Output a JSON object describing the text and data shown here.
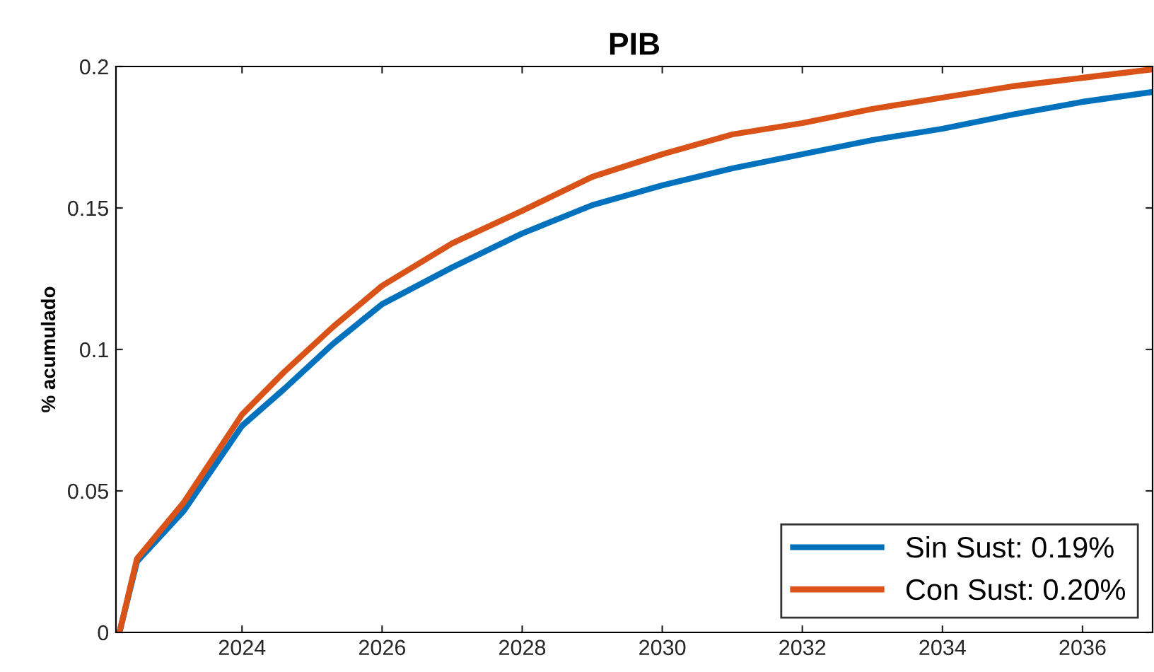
{
  "chart_data": {
    "type": "line",
    "title": "PIB",
    "ylabel": "% acumulado",
    "x": [
      2022.25,
      2022.5,
      2023.17,
      2024,
      2024.6,
      2025.3,
      2026,
      2027,
      2028,
      2029,
      2030,
      2031,
      2032,
      2033,
      2034,
      2035,
      2036,
      2037
    ],
    "series": [
      {
        "name": "Sin Sust: 0.19%",
        "color": "#0072bd",
        "values": [
          0,
          0.025,
          0.043,
          0.073,
          0.086,
          0.102,
          0.116,
          0.129,
          0.141,
          0.151,
          0.158,
          0.164,
          0.169,
          0.174,
          0.178,
          0.183,
          0.1875,
          0.191
        ]
      },
      {
        "name": "Con Sust: 0.20%",
        "color": "#d95319",
        "values": [
          0,
          0.026,
          0.046,
          0.077,
          0.092,
          0.108,
          0.1225,
          0.1375,
          0.149,
          0.161,
          0.169,
          0.176,
          0.18,
          0.185,
          0.189,
          0.193,
          0.196,
          0.199
        ]
      }
    ],
    "xlim": [
      2022.2,
      2037
    ],
    "xticks": [
      2024,
      2026,
      2028,
      2030,
      2032,
      2034,
      2036
    ],
    "ylim": [
      0,
      0.2
    ],
    "yticks": [
      0,
      0.05,
      0.1,
      0.15,
      0.2
    ],
    "grid": false,
    "legend": "bottom right",
    "line_style": "solid",
    "marker": "none"
  }
}
